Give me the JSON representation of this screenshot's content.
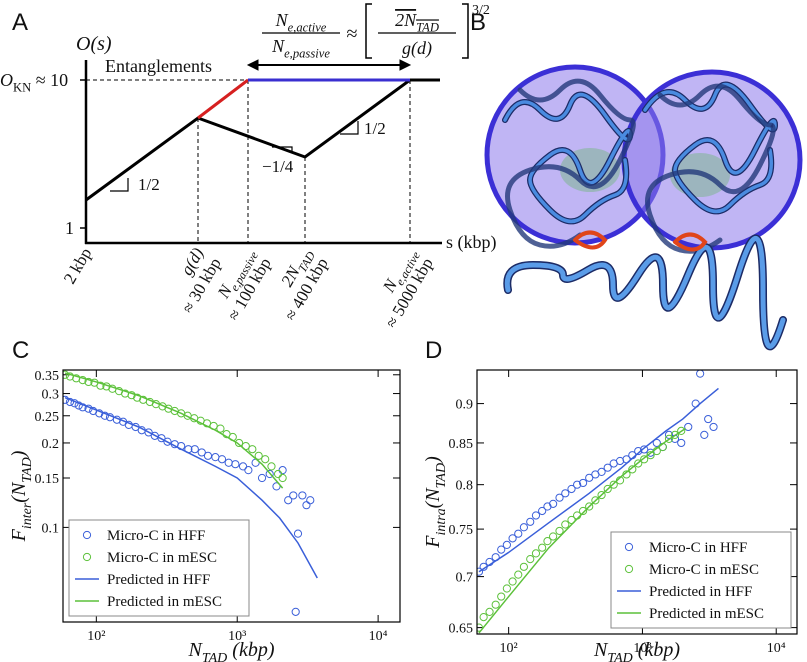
{
  "panel_a": {
    "label": "A",
    "ylabel": "O(s)",
    "okn": [
      "O",
      "KN",
      " ≈ 10"
    ],
    "entanglements": "Entanglements",
    "formula": {
      "lhs_num": [
        "N",
        "e,active"
      ],
      "lhs_den": [
        "N",
        "e,passive"
      ],
      "approx": "≈",
      "rhs_num": [
        "2N",
        "TAD"
      ],
      "rhs_den": "g(d)",
      "exponent": "3/2"
    },
    "slopes": [
      "1/2",
      "−1/4",
      "1/2"
    ],
    "ytick": 1,
    "xlabel": "s (kbp)",
    "xticks": [
      {
        "top": [
          "2 kbp"
        ]
      },
      {
        "top": [
          "g(d)"
        ],
        "bottom": "≈ 30 kbp"
      },
      {
        "top": [
          "N",
          "e,passive"
        ],
        "bottom": "≈ 100 kbp"
      },
      {
        "top": [
          "2N",
          "TAD"
        ],
        "bottom": "≈ 400 kbp"
      },
      {
        "top": [
          "N",
          "e,active"
        ],
        "bottom": "≈ 5000 kbp"
      }
    ]
  },
  "panel_b": {
    "label": "B"
  },
  "chart_data": [
    {
      "type": "scatter",
      "panel_label": "C",
      "ylabel": [
        "F",
        "inter",
        "(N",
        "TAD",
        ")"
      ],
      "xlabel": [
        "N",
        "TAD",
        " (kbp)"
      ],
      "xscale": "log",
      "yscale": "log",
      "xlim": [
        58,
        14300
      ],
      "ylim": [
        0.046,
        0.364
      ],
      "xticks": [
        {
          "value": 100,
          "label": "10²"
        },
        {
          "value": 1000,
          "label": "10³"
        },
        {
          "value": 10000,
          "label": "10⁴"
        }
      ],
      "yticks": [
        0.1,
        0.15,
        0.2,
        0.25,
        0.3,
        0.35
      ],
      "legend": "lower left",
      "series": [
        {
          "name": "Micro-C in HFF",
          "color": "#3a5fd9",
          "mode": "markers",
          "x": [
            60,
            65,
            70,
            75,
            80,
            88,
            95,
            105,
            115,
            125,
            140,
            155,
            170,
            190,
            210,
            235,
            260,
            290,
            320,
            360,
            400,
            450,
            500,
            560,
            620,
            700,
            780,
            870,
            970,
            1100,
            1200,
            1350,
            1500,
            1700,
            1900,
            2100,
            2300,
            2500,
            2600,
            2700,
            2900,
            3100,
            3300
          ],
          "values": [
            0.285,
            0.28,
            0.277,
            0.272,
            0.268,
            0.265,
            0.26,
            0.255,
            0.25,
            0.247,
            0.242,
            0.238,
            0.232,
            0.228,
            0.222,
            0.218,
            0.212,
            0.208,
            0.202,
            0.198,
            0.195,
            0.19,
            0.19,
            0.185,
            0.18,
            0.178,
            0.175,
            0.17,
            0.168,
            0.165,
            0.16,
            0.17,
            0.15,
            0.155,
            0.14,
            0.16,
            0.125,
            0.13,
            0.05,
            0.095,
            0.13,
            0.12,
            0.125
          ]
        },
        {
          "name": "Micro-C in mESC",
          "color": "#5cc13a",
          "mode": "markers",
          "x": [
            60,
            65,
            72,
            80,
            88,
            97,
            107,
            118,
            130,
            145,
            160,
            178,
            195,
            215,
            240,
            265,
            295,
            325,
            360,
            400,
            445,
            495,
            550,
            610,
            680,
            760,
            840,
            930,
            1030,
            1150,
            1280,
            1420,
            1580,
            1750,
            1950,
            2100
          ],
          "values": [
            0.35,
            0.345,
            0.34,
            0.335,
            0.33,
            0.328,
            0.32,
            0.318,
            0.312,
            0.306,
            0.3,
            0.296,
            0.29,
            0.285,
            0.28,
            0.275,
            0.27,
            0.265,
            0.26,
            0.255,
            0.25,
            0.245,
            0.24,
            0.235,
            0.23,
            0.225,
            0.215,
            0.21,
            0.2,
            0.195,
            0.19,
            0.18,
            0.175,
            0.165,
            0.155,
            0.15
          ]
        },
        {
          "name": "Predicted in HFF",
          "color": "#3a5fd9",
          "mode": "line",
          "x": [
            60,
            100,
            200,
            400,
            700,
            1000,
            1500,
            2000,
            2700,
            3700
          ],
          "values": [
            0.29,
            0.262,
            0.228,
            0.19,
            0.165,
            0.15,
            0.125,
            0.108,
            0.088,
            0.066
          ]
        },
        {
          "name": "Predicted in mESC",
          "color": "#5cc13a",
          "mode": "line",
          "x": [
            60,
            100,
            200,
            400,
            700,
            1000,
            1500,
            2100
          ],
          "values": [
            0.355,
            0.33,
            0.295,
            0.255,
            0.222,
            0.2,
            0.168,
            0.138
          ]
        }
      ]
    },
    {
      "type": "scatter",
      "panel_label": "D",
      "ylabel": [
        "F",
        "intra",
        "(N",
        "TAD",
        ")"
      ],
      "xlabel": [
        "N",
        "TAD",
        " (kbp)"
      ],
      "xscale": "log",
      "yscale": "log",
      "xlim": [
        58,
        14300
      ],
      "ylim": [
        0.644,
        0.945
      ],
      "xticks": [
        {
          "value": 100,
          "label": "10²"
        },
        {
          "value": 1000,
          "label": "10³"
        },
        {
          "value": 10000,
          "label": "10⁴"
        }
      ],
      "yticks": [
        0.65,
        0.7,
        0.75,
        0.8,
        0.85,
        0.9
      ],
      "legend": "lower right",
      "series": [
        {
          "name": "Micro-C in HFF",
          "color": "#3a5fd9",
          "mode": "markers",
          "x": [
            60,
            65,
            72,
            80,
            88,
            97,
            107,
            118,
            130,
            145,
            160,
            178,
            195,
            215,
            240,
            265,
            295,
            325,
            360,
            400,
            445,
            495,
            550,
            610,
            680,
            760,
            840,
            930,
            1030,
            1150,
            1280,
            1420,
            1580,
            1750,
            1950,
            2200,
            2500,
            2700,
            2900,
            3100,
            3400
          ],
          "values": [
            0.705,
            0.71,
            0.715,
            0.72,
            0.728,
            0.733,
            0.74,
            0.745,
            0.752,
            0.758,
            0.765,
            0.77,
            0.775,
            0.778,
            0.785,
            0.79,
            0.795,
            0.8,
            0.802,
            0.808,
            0.812,
            0.815,
            0.82,
            0.825,
            0.828,
            0.83,
            0.835,
            0.84,
            0.842,
            0.838,
            0.85,
            0.845,
            0.86,
            0.855,
            0.85,
            0.87,
            0.9,
            0.94,
            0.86,
            0.88,
            0.87
          ]
        },
        {
          "name": "Micro-C in mESC",
          "color": "#5cc13a",
          "mode": "markers",
          "x": [
            60,
            65,
            72,
            80,
            88,
            97,
            107,
            118,
            130,
            145,
            160,
            178,
            195,
            215,
            240,
            265,
            295,
            325,
            360,
            400,
            445,
            495,
            550,
            610,
            680,
            760,
            840,
            930,
            1030,
            1150,
            1280,
            1420,
            1580,
            1750,
            1950
          ],
          "values": [
            0.65,
            0.66,
            0.665,
            0.672,
            0.68,
            0.688,
            0.695,
            0.702,
            0.71,
            0.718,
            0.724,
            0.73,
            0.737,
            0.742,
            0.748,
            0.755,
            0.76,
            0.765,
            0.77,
            0.775,
            0.782,
            0.788,
            0.795,
            0.8,
            0.805,
            0.812,
            0.818,
            0.825,
            0.83,
            0.835,
            0.84,
            0.845,
            0.855,
            0.86,
            0.865
          ]
        },
        {
          "name": "Predicted in HFF",
          "color": "#3a5fd9",
          "mode": "line",
          "x": [
            60,
            100,
            200,
            400,
            700,
            1000,
            1500,
            2000,
            2700,
            3700
          ],
          "values": [
            0.705,
            0.725,
            0.757,
            0.79,
            0.82,
            0.842,
            0.865,
            0.88,
            0.9,
            0.92
          ]
        },
        {
          "name": "Predicted in mESC",
          "color": "#5cc13a",
          "mode": "line",
          "x": [
            60,
            100,
            200,
            400,
            700,
            1000,
            1500,
            2100
          ],
          "values": [
            0.645,
            0.68,
            0.73,
            0.775,
            0.81,
            0.83,
            0.852,
            0.868
          ]
        }
      ]
    }
  ]
}
